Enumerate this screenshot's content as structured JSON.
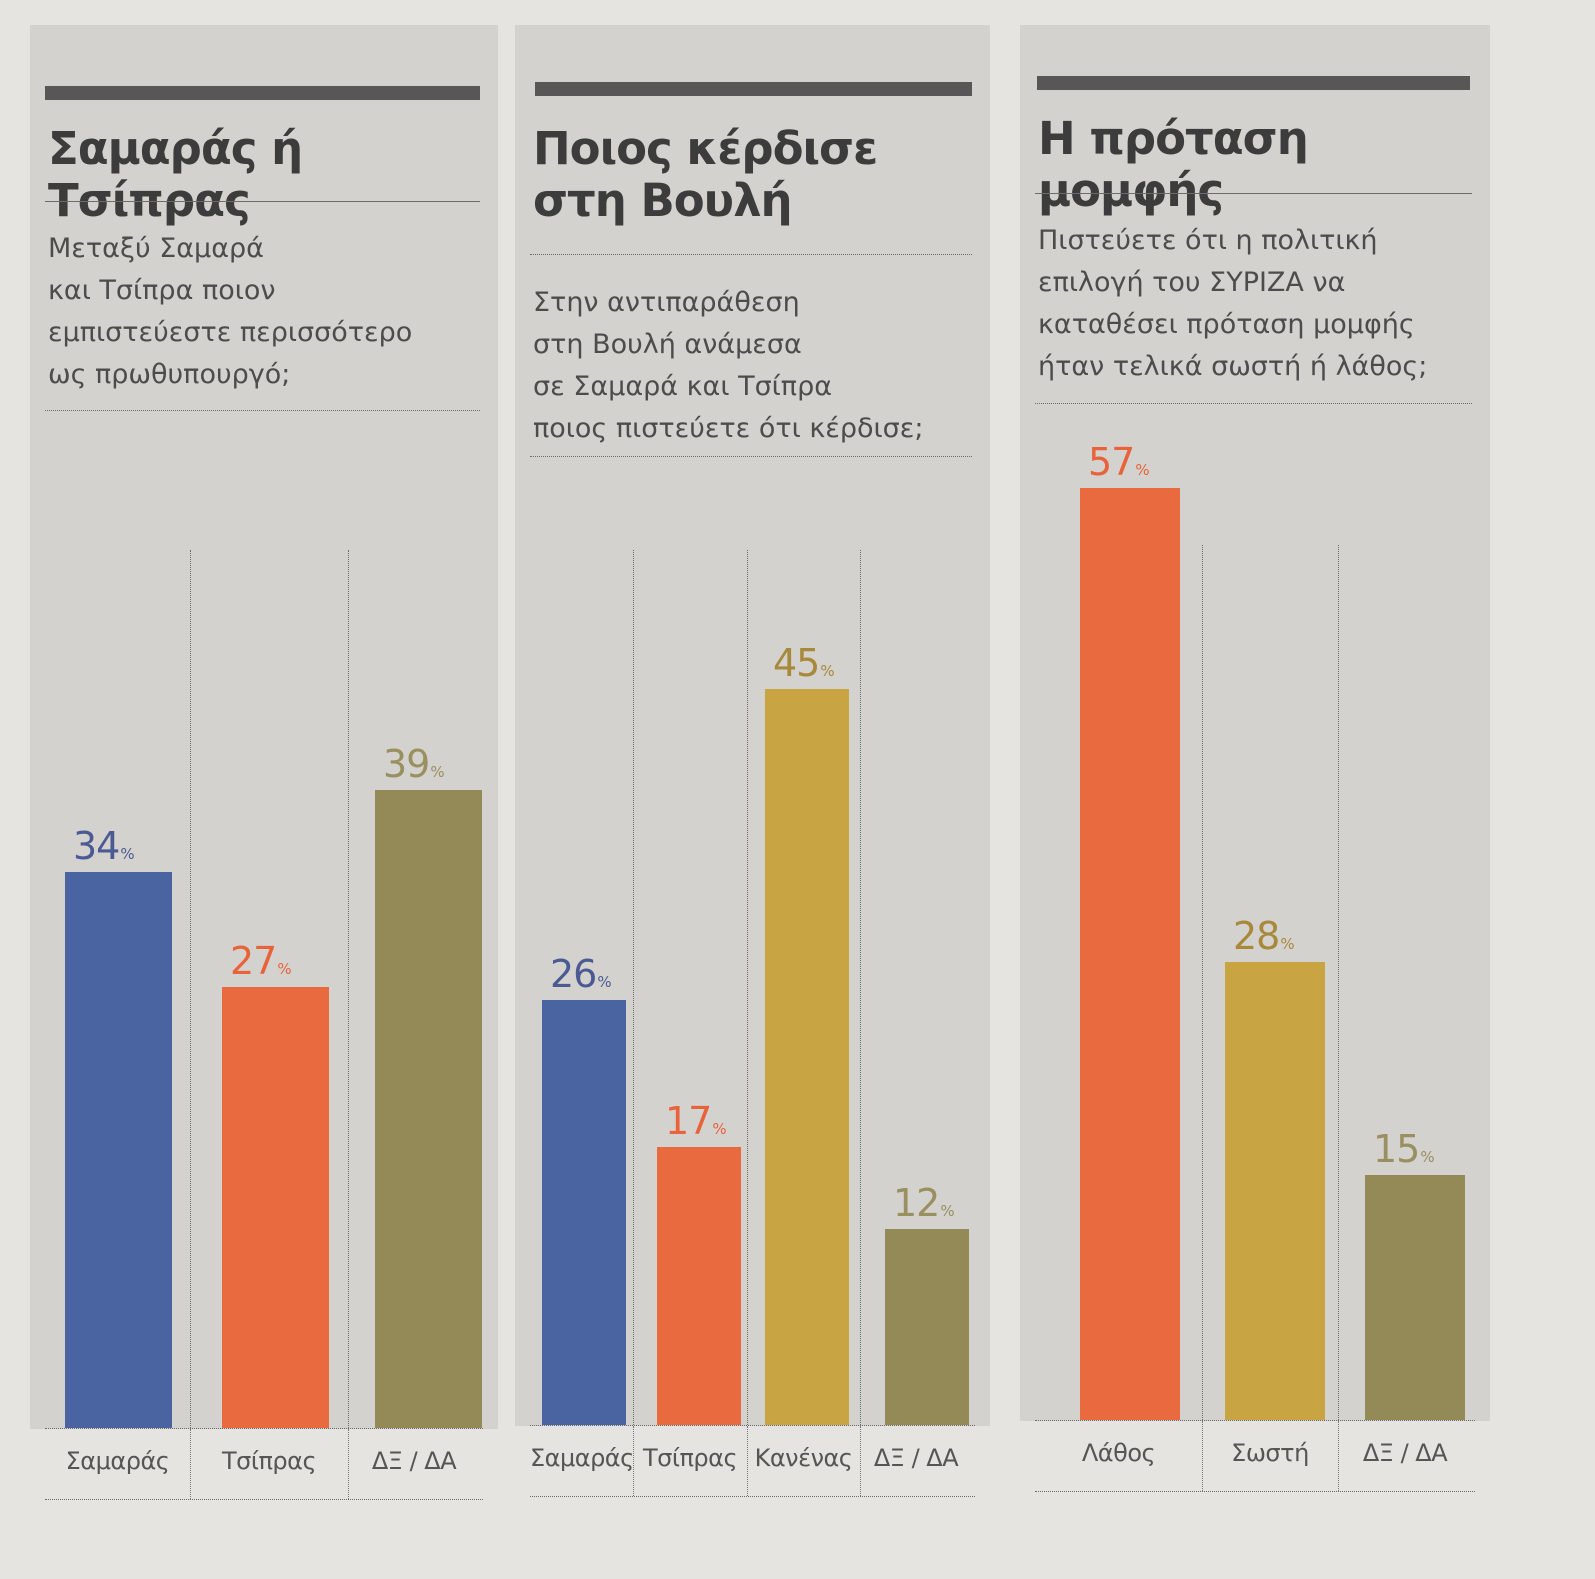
{
  "colors": {
    "samaras_blue": "#4a64a2",
    "tsipras_orange": "#ea6a3f",
    "dk_da_olive": "#948a58",
    "kanenas_gold": "#c8a443",
    "sosti_gold": "#c8a443",
    "panel_bg": "#d3d2cf",
    "paper_bg": "#e6e4e0"
  },
  "chart_data": [
    {
      "type": "bar",
      "title": "Σαμαράς ή Τσίπρας",
      "question": "Μεταξύ Σαμαρά\nκαι Τσίπρα ποιον\nεμπιστεύεστε περισσότερο\nως πρωθυπουργό;",
      "categories": [
        "Σαμαράς",
        "Τσίπρας",
        "ΔΞ / ΔΑ"
      ],
      "values": [
        34,
        27,
        39
      ],
      "value_labels": [
        "34",
        "27",
        "39"
      ],
      "unit": "%",
      "bar_colors": [
        "#4a64a2",
        "#ea6a3f",
        "#948a58"
      ],
      "label_colors": [
        "#4b5a93",
        "#e8623a",
        "#9a8f5e"
      ],
      "ylim": [
        0,
        60
      ],
      "xlabel": "",
      "ylabel": "",
      "grid": false
    },
    {
      "type": "bar",
      "title": "Ποιος κέρδισε\nστη Βουλή",
      "question": "Στην αντιπαράθεση\nστη Βουλή ανάμεσα\nσε Σαμαρά και Τσίπρα\nποιος πιστεύετε ότι κέρδισε;",
      "categories": [
        "Σαμαράς",
        "Τσίπρας",
        "Κανένας",
        "ΔΞ / ΔΑ"
      ],
      "values": [
        26,
        17,
        45,
        12
      ],
      "value_labels": [
        "26",
        "17",
        "45",
        "12"
      ],
      "unit": "%",
      "bar_colors": [
        "#4a64a2",
        "#ea6a3f",
        "#c8a443",
        "#948a58"
      ],
      "label_colors": [
        "#4b5a93",
        "#e8623a",
        "#a8893a",
        "#9a8f5e"
      ],
      "ylim": [
        0,
        60
      ],
      "xlabel": "",
      "ylabel": "",
      "grid": false
    },
    {
      "type": "bar",
      "title": "Η πρόταση μομφής",
      "question": "Πιστεύετε ότι η πολιτική\nεπιλογή του ΣΥΡΙΖΑ να\nκαταθέσει πρόταση μομφής\nήταν τελικά σωστή ή λάθος;",
      "categories": [
        "Λάθος",
        "Σωστή",
        "ΔΞ / ΔΑ"
      ],
      "values": [
        57,
        28,
        15
      ],
      "value_labels": [
        "57",
        "28",
        "15"
      ],
      "unit": "%",
      "bar_colors": [
        "#ea6a3f",
        "#c8a443",
        "#948a58"
      ],
      "label_colors": [
        "#e8623a",
        "#a8893a",
        "#9a8f5e"
      ],
      "ylim": [
        0,
        60
      ],
      "xlabel": "",
      "ylabel": "",
      "grid": false
    }
  ]
}
